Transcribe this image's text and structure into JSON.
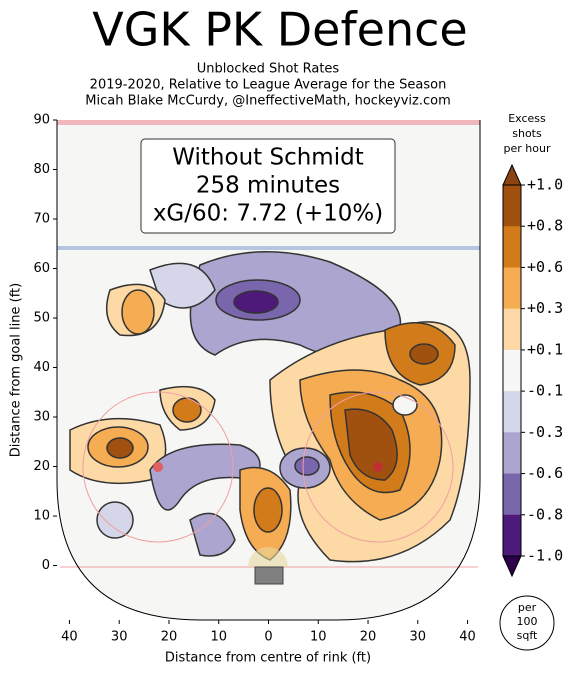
{
  "chart_data": {
    "type": "contour",
    "title": "VGK PK Defence",
    "subtitle": [
      "Unblocked Shot Rates",
      "2019-2020, Relative to League Average for the Season",
      "Micah Blake McCurdy, @IneffectiveMath, hockeyviz.com"
    ],
    "annotation": [
      "Without Schmidt",
      "258 minutes",
      "xG/60: 7.72 (+10%)"
    ],
    "xlabel": "Distance from centre of rink (ft)",
    "ylabel": "Distance from goal line (ft)",
    "xlim": [
      -42.5,
      42.5
    ],
    "ylim": [
      -11,
      90
    ],
    "xticks": [
      {
        "value": -40,
        "label": "40"
      },
      {
        "value": -30,
        "label": "30"
      },
      {
        "value": -20,
        "label": "20"
      },
      {
        "value": -10,
        "label": "10"
      },
      0,
      10,
      20,
      30,
      40
    ],
    "yticks": [
      0,
      10,
      20,
      30,
      40,
      50,
      60,
      70,
      80,
      90
    ],
    "colorbar": {
      "title": [
        "Excess",
        "shots",
        "per hour"
      ],
      "ticks": [
        {
          "value": 1.0,
          "label": "+1.0"
        },
        {
          "value": 0.8,
          "label": "+0.8"
        },
        {
          "value": 0.6,
          "label": "+0.6"
        },
        {
          "value": 0.3,
          "label": "+0.3"
        },
        {
          "value": 0.1,
          "label": "+0.1"
        },
        {
          "value": -0.1,
          "label": "-0.1"
        },
        {
          "value": -0.3,
          "label": "-0.3"
        },
        {
          "value": -0.6,
          "label": "-0.6"
        },
        {
          "value": -0.8,
          "label": "-0.8"
        },
        {
          "value": -1.0,
          "label": "-1.0"
        }
      ],
      "colors": [
        "#a0510f",
        "#d27b1b",
        "#f5ac52",
        "#fdd9a6",
        "#f7f7f7",
        "#d6d6ea",
        "#aba5cf",
        "#7a66ac",
        "#4e1a7a"
      ],
      "extend_colors": [
        "#8b4513",
        "#2d004b"
      ]
    },
    "unit_note": [
      "per",
      "100",
      "sqft"
    ]
  }
}
